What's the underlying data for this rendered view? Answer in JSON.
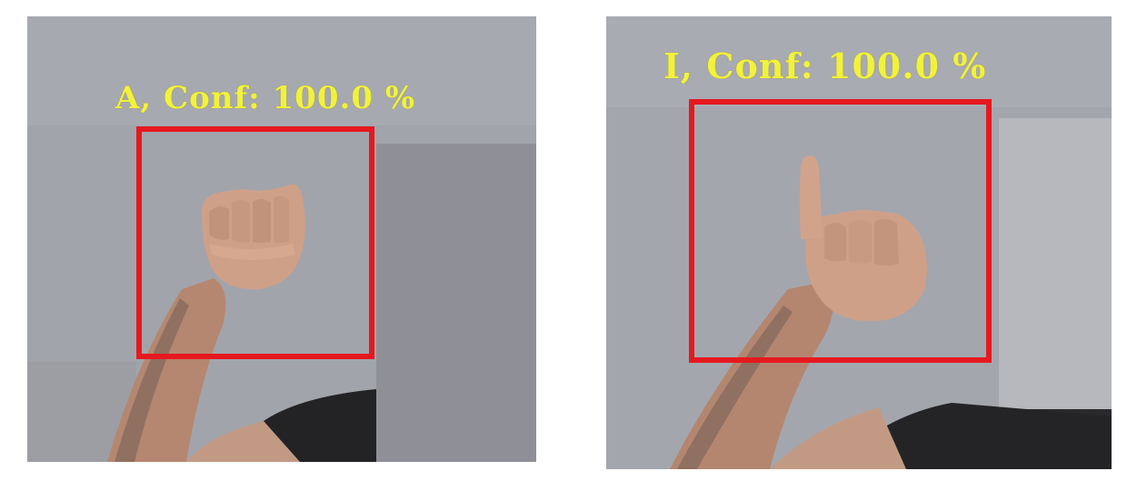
{
  "frames": [
    {
      "letter": "A",
      "label": "A, Conf: 100.0 %",
      "gesture": "closed fist, thumb alongside"
    },
    {
      "letter": "I",
      "label": "I, Conf: 100.0 %",
      "gesture": "fist with pinky raised"
    }
  ],
  "colors": {
    "label_text": "#f2f23a",
    "bounding_box": "#e5191f",
    "wall": "#a3a5ac",
    "skin": "#c99a80",
    "shirt": "#222224"
  }
}
